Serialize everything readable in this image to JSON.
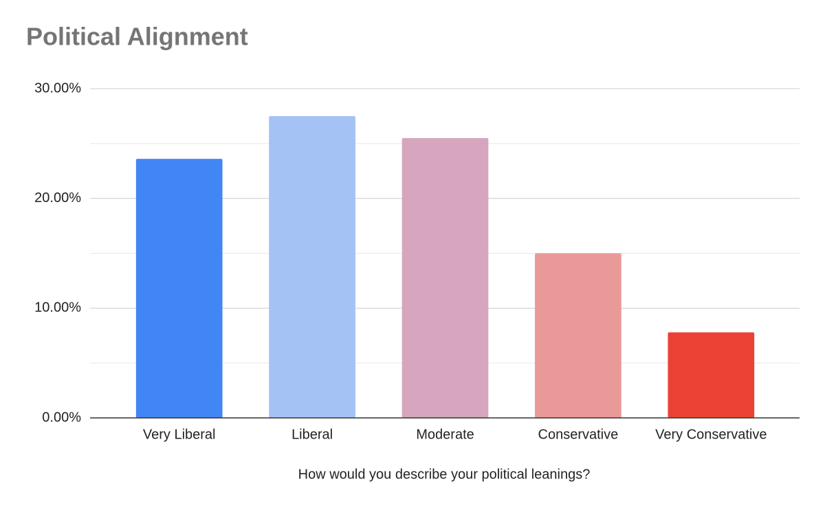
{
  "chart_data": {
    "type": "bar",
    "title": "Political Alignment",
    "x_label": "How would you describe your political leanings?",
    "categories": [
      "Very Liberal",
      "Liberal",
      "Moderate",
      "Conservative",
      "Very Conservative"
    ],
    "values": [
      23.6,
      27.5,
      25.5,
      15.0,
      7.8
    ],
    "colors": [
      "#4285f4",
      "#a4c2f4",
      "#d5a6bd",
      "#ea9999",
      "#ea4335"
    ],
    "ylim": [
      0,
      30
    ],
    "yticks": [
      {
        "value": 0,
        "label": "0.00%"
      },
      {
        "value": 10,
        "label": "10.00%"
      },
      {
        "value": 20,
        "label": "20.00%"
      },
      {
        "value": 30,
        "label": "30.00%"
      }
    ],
    "minor_yticks": [
      5,
      15,
      25
    ],
    "grid": true
  }
}
